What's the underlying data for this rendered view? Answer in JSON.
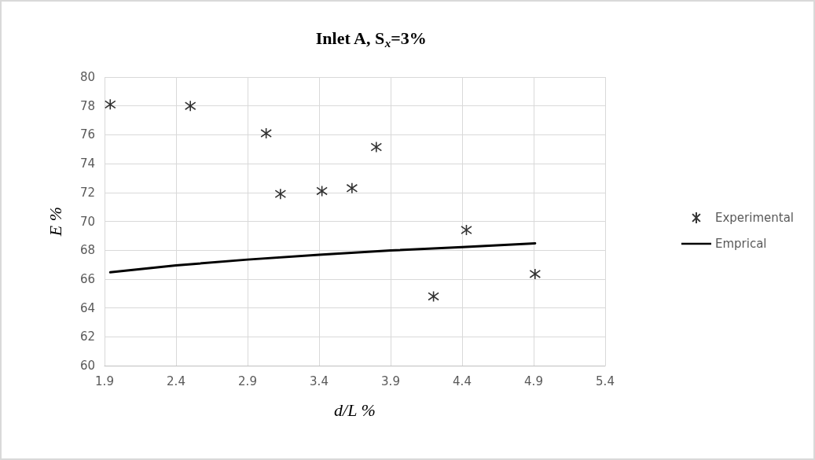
{
  "chart_data": {
    "type": "scatter",
    "title": "Inlet A, S$_{x}$=3%",
    "xlabel": "d/L %",
    "ylabel": "E %",
    "xlim": [
      1.9,
      5.4
    ],
    "xticks": [
      1.9,
      2.4,
      2.9,
      3.4,
      3.9,
      4.4,
      4.9,
      5.4
    ],
    "ylim": [
      60,
      80
    ],
    "yticks": [
      60,
      62,
      64,
      66,
      68,
      70,
      72,
      74,
      76,
      78,
      80
    ],
    "grid": true,
    "legend": "right",
    "marker": "cross",
    "series": [
      {
        "name": "Experimental",
        "color": "#000000",
        "x": [
          1.94,
          2.5,
          3.03,
          3.13,
          3.42,
          3.63,
          3.8,
          4.2,
          4.43,
          4.91
        ],
        "values": [
          78.1,
          78.0,
          76.1,
          71.9,
          72.1,
          72.3,
          75.15,
          64.8,
          69.4,
          66.35
        ]
      },
      {
        "name": "Emprical",
        "type": "line",
        "marker": "none",
        "line_style": "solid",
        "color": "#000000",
        "x": [
          1.94,
          2.4,
          2.9,
          3.4,
          3.9,
          4.4,
          4.91
        ],
        "values": [
          66.47,
          66.95,
          67.35,
          67.68,
          67.98,
          68.22,
          68.48
        ]
      }
    ]
  }
}
